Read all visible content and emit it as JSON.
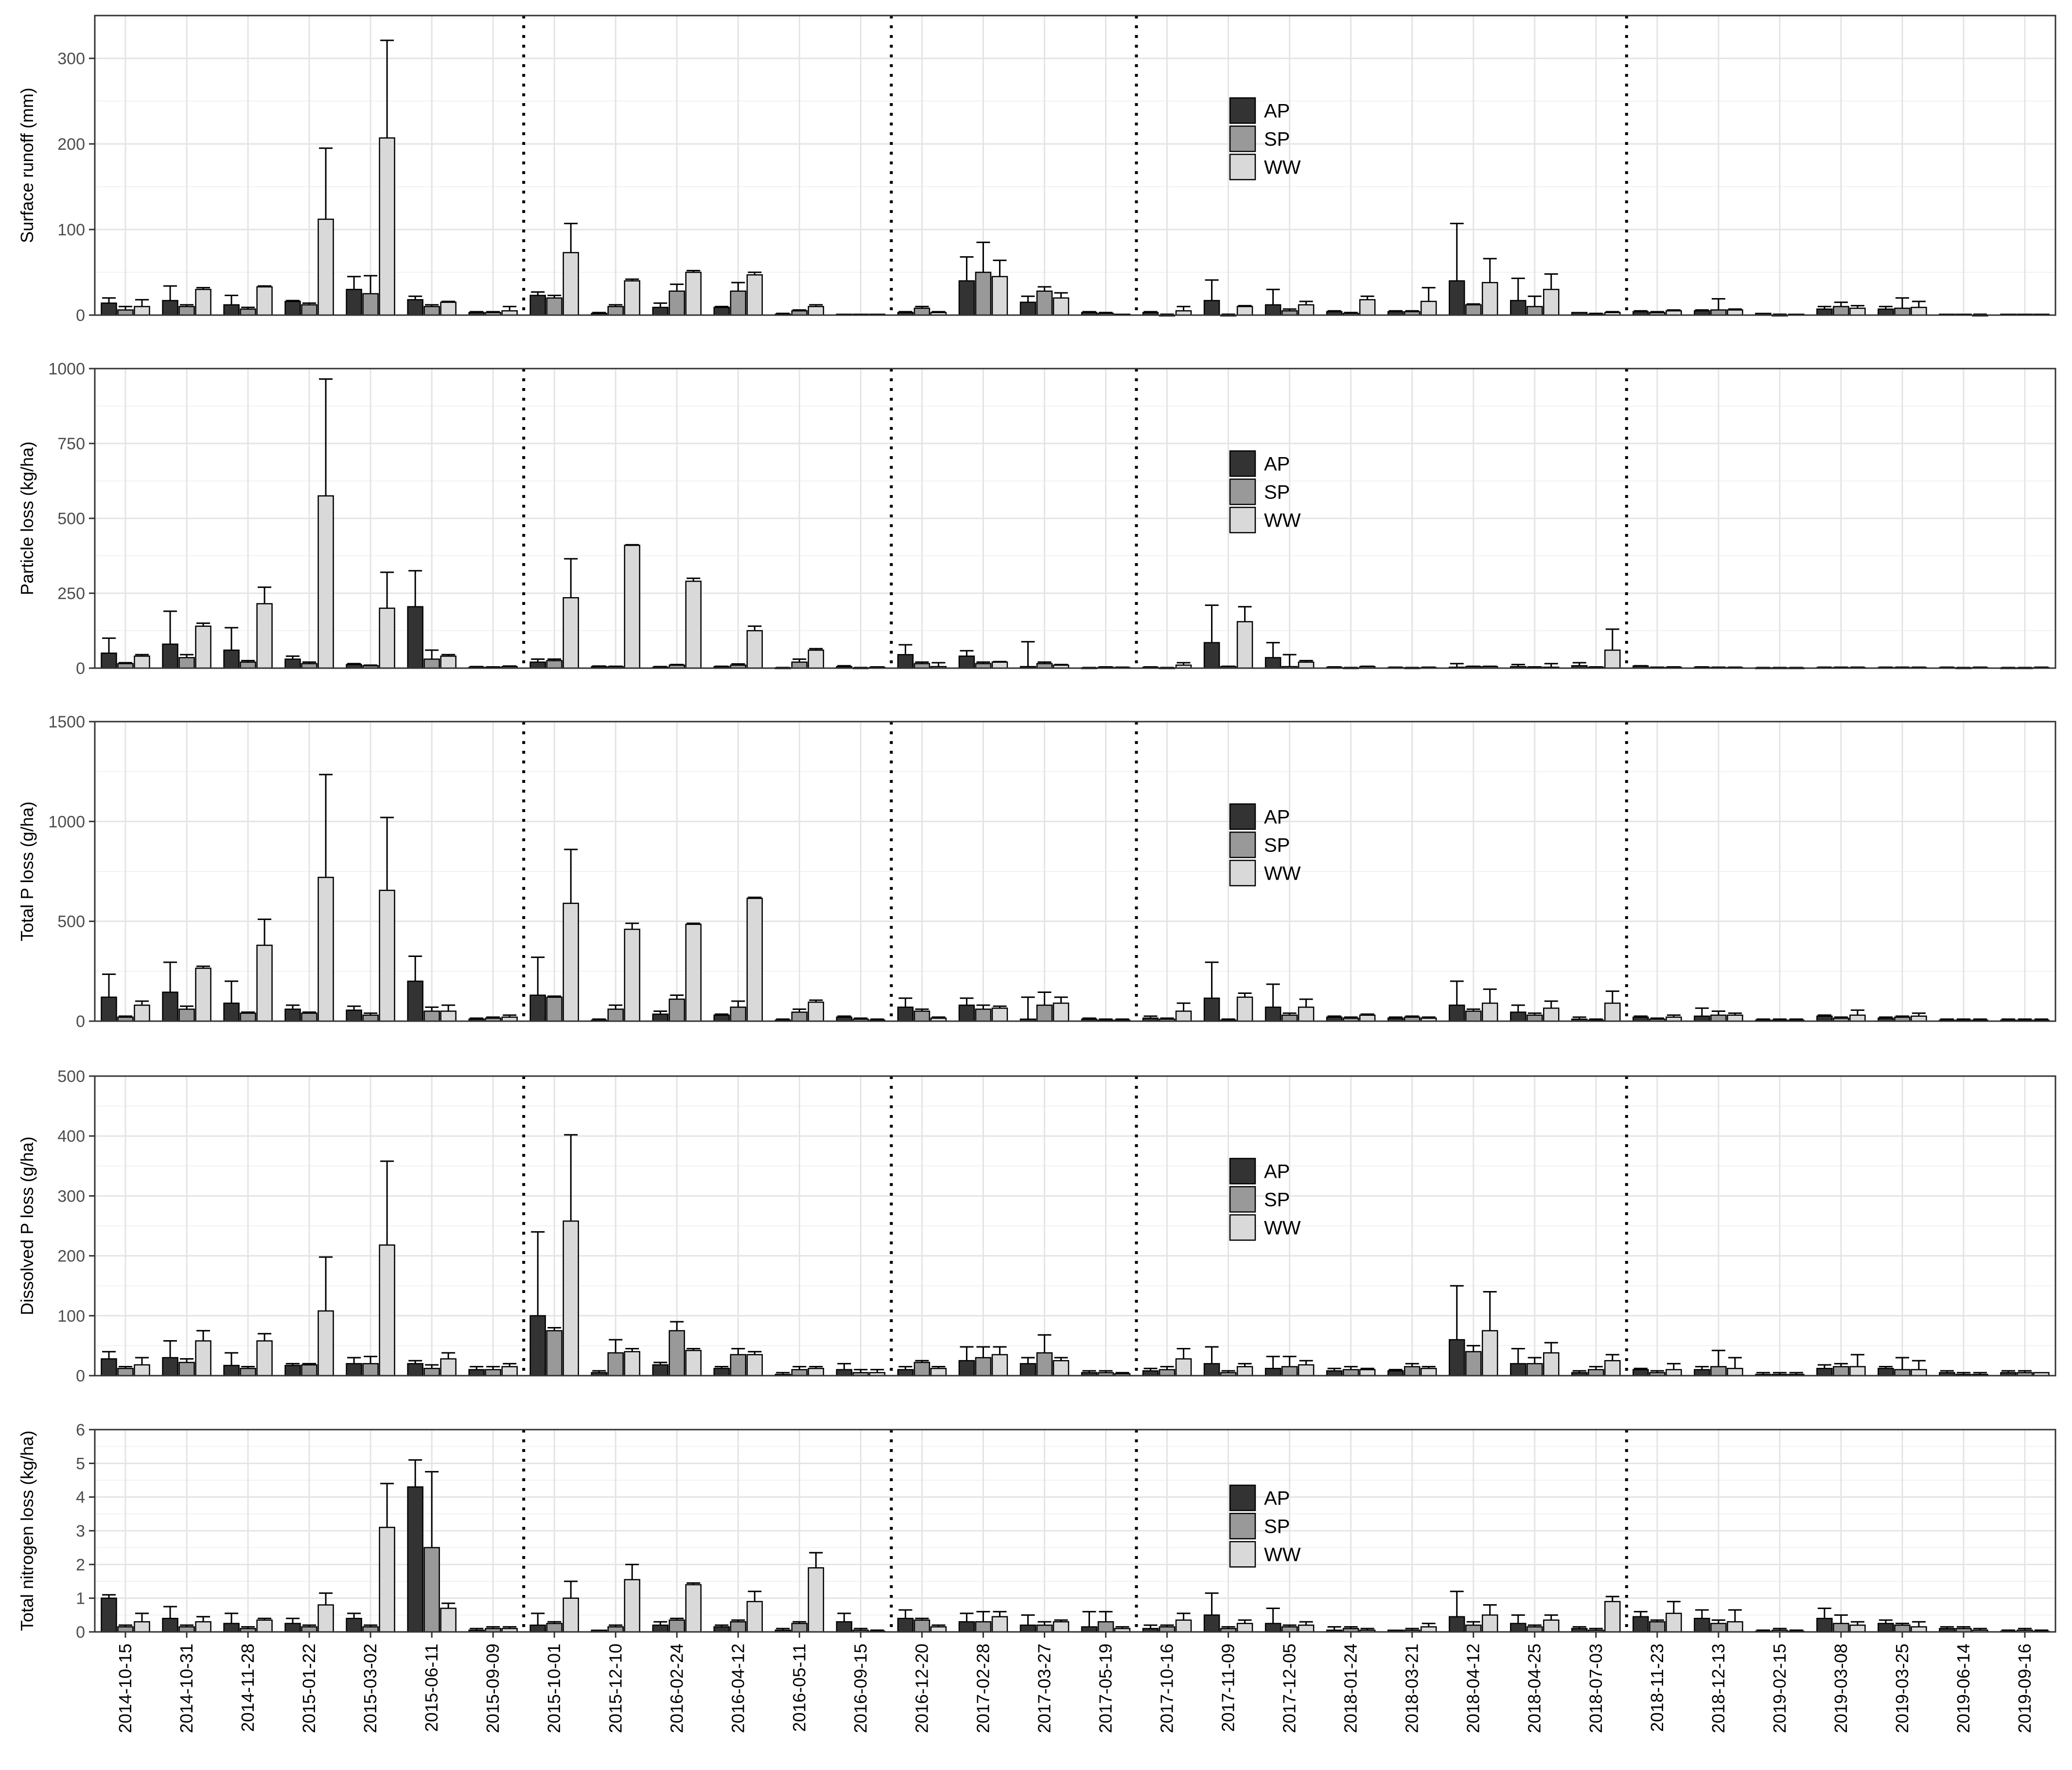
{
  "figure": {
    "type": "bar",
    "dates": [
      "2014-10-15",
      "2014-10-31",
      "2014-11-28",
      "2015-01-22",
      "2015-03-02",
      "2015-06-11",
      "2015-09-09",
      "2015-10-01",
      "2015-12-10",
      "2016-02-24",
      "2016-04-12",
      "2016-05-11",
      "2016-09-15",
      "2016-12-20",
      "2017-02-28",
      "2017-03-27",
      "2017-05-19",
      "2017-10-16",
      "2017-11-09",
      "2017-12-05",
      "2018-01-24",
      "2018-03-21",
      "2018-04-12",
      "2018-04-25",
      "2018-07-03",
      "2018-11-23",
      "2018-12-13",
      "2019-02-15",
      "2019-03-08",
      "2019-03-25",
      "2019-06-14",
      "2019-09-16"
    ],
    "series_names": [
      "AP",
      "SP",
      "WW"
    ],
    "colors": {
      "AP": "#333333",
      "SP": "#999999",
      "WW": "#d9d9d9"
    },
    "period_separators_after": [
      "2015-09-09",
      "2016-09-15",
      "2017-05-19",
      "2018-07-03"
    ],
    "legend_placement": "inside, upper middle of each panel",
    "grid": true
  },
  "chart_data": [
    {
      "type": "bar",
      "ylabel": "Surface runoff (mm)",
      "ylim": [
        0,
        350
      ],
      "yticks": [
        0,
        100,
        200,
        300
      ],
      "series": [
        {
          "name": "AP",
          "values": [
            14,
            17,
            12,
            16,
            30,
            18,
            3,
            23,
            2,
            9,
            9,
            1,
            1,
            3,
            40,
            15,
            3,
            3,
            17,
            12,
            4,
            4,
            40,
            17,
            3,
            4,
            5,
            2,
            7,
            7,
            1,
            1
          ]
        },
        {
          "name": "SP",
          "values": [
            6,
            10,
            7,
            12,
            25,
            10,
            3,
            20,
            10,
            28,
            28,
            5,
            1,
            8,
            50,
            28,
            2,
            0,
            0,
            5,
            2,
            4,
            12,
            10,
            1,
            3,
            6,
            0,
            10,
            8,
            1,
            1
          ]
        },
        {
          "name": "WW",
          "values": [
            10,
            30,
            33,
            112,
            207,
            15,
            5,
            73,
            40,
            50,
            47,
            10,
            1,
            3,
            45,
            20,
            1,
            5,
            10,
            12,
            18,
            16,
            38,
            30,
            3,
            5,
            6,
            1,
            8,
            9,
            0,
            1
          ]
        }
      ],
      "error_tops": {
        "AP": [
          20,
          34,
          23,
          17,
          45,
          22,
          4,
          27,
          3,
          14,
          10,
          2,
          1,
          4,
          68,
          22,
          4,
          4,
          41,
          30,
          5,
          5,
          107,
          43,
          3,
          5,
          6,
          2,
          10,
          10,
          1,
          1
        ],
        "SP": [
          10,
          12,
          9,
          14,
          46,
          12,
          4,
          23,
          12,
          36,
          38,
          6,
          1,
          10,
          85,
          33,
          3,
          1,
          1,
          7,
          3,
          5,
          13,
          22,
          2,
          4,
          19,
          1,
          15,
          20,
          1,
          1
        ],
        "WW": [
          18,
          32,
          34,
          195,
          321,
          16,
          10,
          107,
          42,
          52,
          50,
          12,
          1,
          4,
          64,
          26,
          1,
          10,
          11,
          16,
          22,
          32,
          66,
          48,
          4,
          6,
          7,
          1,
          11,
          16,
          1,
          1
        ]
      }
    },
    {
      "type": "bar",
      "ylabel": "Particle loss (kg/ha)",
      "ylim": [
        0,
        1000
      ],
      "yticks": [
        0,
        250,
        500,
        750,
        1000
      ],
      "series": [
        {
          "name": "AP",
          "values": [
            50,
            80,
            60,
            30,
            12,
            205,
            3,
            20,
            5,
            3,
            5,
            1,
            5,
            45,
            40,
            5,
            1,
            3,
            85,
            35,
            3,
            2,
            3,
            5,
            8,
            7,
            3,
            1,
            2,
            2,
            2,
            1
          ]
        },
        {
          "name": "SP",
          "values": [
            15,
            35,
            20,
            15,
            8,
            30,
            3,
            25,
            5,
            10,
            10,
            20,
            1,
            15,
            15,
            15,
            3,
            1,
            5,
            5,
            1,
            1,
            5,
            3,
            3,
            2,
            2,
            1,
            2,
            2,
            1,
            1
          ]
        },
        {
          "name": "WW",
          "values": [
            40,
            140,
            215,
            575,
            200,
            40,
            5,
            235,
            410,
            290,
            125,
            60,
            3,
            5,
            20,
            10,
            2,
            10,
            155,
            20,
            5,
            2,
            5,
            3,
            60,
            3,
            2,
            1,
            2,
            2,
            2,
            2
          ]
        }
      ],
      "error_tops": {
        "AP": [
          100,
          190,
          135,
          40,
          15,
          325,
          5,
          30,
          7,
          5,
          6,
          2,
          8,
          78,
          58,
          88,
          2,
          4,
          210,
          85,
          4,
          3,
          15,
          12,
          18,
          8,
          4,
          2,
          3,
          3,
          3,
          2
        ],
        "SP": [
          18,
          45,
          25,
          20,
          10,
          60,
          4,
          30,
          6,
          12,
          14,
          30,
          2,
          20,
          20,
          20,
          4,
          2,
          6,
          45,
          2,
          2,
          6,
          4,
          4,
          3,
          3,
          2,
          3,
          3,
          2,
          2
        ],
        "WW": [
          45,
          150,
          270,
          965,
          320,
          45,
          7,
          365,
          412,
          300,
          140,
          65,
          4,
          18,
          22,
          12,
          3,
          18,
          205,
          25,
          6,
          3,
          6,
          15,
          130,
          4,
          3,
          2,
          3,
          3,
          3,
          3
        ]
      }
    },
    {
      "type": "bar",
      "ylabel": "Total P loss (g/ha)",
      "ylim": [
        0,
        1500
      ],
      "yticks": [
        0,
        500,
        1000,
        1500
      ],
      "series": [
        {
          "name": "AP",
          "values": [
            120,
            145,
            90,
            60,
            55,
            200,
            10,
            130,
            5,
            35,
            30,
            5,
            20,
            70,
            80,
            10,
            10,
            15,
            115,
            70,
            20,
            15,
            80,
            45,
            10,
            20,
            25,
            5,
            25,
            15,
            5,
            5
          ]
        },
        {
          "name": "SP",
          "values": [
            20,
            60,
            40,
            40,
            30,
            50,
            15,
            120,
            60,
            110,
            70,
            45,
            10,
            50,
            60,
            80,
            5,
            10,
            5,
            30,
            15,
            20,
            50,
            30,
            5,
            10,
            30,
            5,
            15,
            20,
            5,
            5
          ]
        },
        {
          "name": "WW",
          "values": [
            80,
            265,
            380,
            720,
            655,
            50,
            20,
            590,
            460,
            485,
            615,
            95,
            5,
            15,
            65,
            90,
            5,
            50,
            120,
            70,
            30,
            15,
            90,
            65,
            90,
            20,
            30,
            5,
            30,
            25,
            5,
            5
          ]
        }
      ],
      "error_tops": {
        "AP": [
          235,
          295,
          200,
          80,
          75,
          325,
          15,
          320,
          10,
          50,
          35,
          10,
          25,
          115,
          115,
          120,
          15,
          25,
          295,
          185,
          25,
          20,
          200,
          80,
          20,
          25,
          65,
          10,
          30,
          20,
          10,
          10
        ],
        "SP": [
          25,
          75,
          45,
          45,
          40,
          70,
          20,
          125,
          80,
          130,
          100,
          60,
          15,
          60,
          80,
          145,
          10,
          15,
          10,
          40,
          20,
          25,
          60,
          40,
          10,
          15,
          50,
          10,
          20,
          25,
          10,
          10
        ],
        "WW": [
          100,
          275,
          510,
          1235,
          1020,
          80,
          30,
          860,
          490,
          490,
          620,
          105,
          10,
          20,
          75,
          120,
          10,
          90,
          140,
          110,
          35,
          20,
          160,
          100,
          150,
          30,
          40,
          10,
          55,
          40,
          10,
          10
        ]
      }
    },
    {
      "type": "bar",
      "ylabel": "Dissolved P loss (g/ha)",
      "ylim": [
        0,
        500
      ],
      "yticks": [
        0,
        100,
        200,
        300,
        400,
        500
      ],
      "series": [
        {
          "name": "AP",
          "values": [
            28,
            30,
            17,
            17,
            20,
            20,
            10,
            100,
            5,
            18,
            12,
            2,
            10,
            10,
            25,
            20,
            5,
            8,
            20,
            12,
            8,
            8,
            60,
            20,
            5,
            10,
            10,
            2,
            12,
            12,
            5,
            5
          ]
        },
        {
          "name": "SP",
          "values": [
            12,
            22,
            12,
            18,
            20,
            12,
            10,
            75,
            38,
            75,
            35,
            10,
            5,
            22,
            30,
            38,
            5,
            10,
            5,
            15,
            10,
            15,
            40,
            20,
            10,
            5,
            15,
            2,
            15,
            10,
            2,
            5
          ]
        },
        {
          "name": "WW",
          "values": [
            18,
            58,
            58,
            108,
            218,
            28,
            15,
            258,
            40,
            42,
            35,
            12,
            5,
            12,
            35,
            25,
            3,
            28,
            15,
            18,
            10,
            12,
            75,
            38,
            25,
            10,
            12,
            2,
            15,
            10,
            2,
            5
          ]
        }
      ],
      "error_tops": {
        "AP": [
          40,
          58,
          38,
          20,
          30,
          25,
          15,
          240,
          8,
          22,
          15,
          5,
          20,
          15,
          48,
          30,
          8,
          12,
          48,
          32,
          12,
          10,
          150,
          45,
          8,
          12,
          15,
          5,
          18,
          15,
          8,
          8
        ],
        "SP": [
          15,
          28,
          15,
          20,
          32,
          18,
          15,
          80,
          60,
          90,
          45,
          15,
          10,
          25,
          48,
          68,
          8,
          15,
          8,
          32,
          15,
          20,
          50,
          30,
          15,
          8,
          42,
          5,
          20,
          30,
          5,
          8
        ],
        "WW": [
          30,
          75,
          70,
          198,
          358,
          38,
          20,
          402,
          45,
          45,
          40,
          15,
          10,
          15,
          48,
          30,
          5,
          45,
          20,
          25,
          12,
          15,
          140,
          55,
          35,
          20,
          30,
          5,
          35,
          25,
          5,
          5
        ]
      }
    },
    {
      "type": "bar",
      "ylabel": "Total nitrogen loss (kg/ha)",
      "ylim": [
        0,
        6
      ],
      "yticks": [
        0,
        1,
        2,
        3,
        4,
        5,
        6
      ],
      "series": [
        {
          "name": "AP",
          "values": [
            1.0,
            0.4,
            0.25,
            0.25,
            0.4,
            4.3,
            0.05,
            0.2,
            0.05,
            0.2,
            0.15,
            0.05,
            0.3,
            0.4,
            0.3,
            0.2,
            0.15,
            0.1,
            0.5,
            0.25,
            0.05,
            0.05,
            0.45,
            0.25,
            0.1,
            0.45,
            0.4,
            0.02,
            0.4,
            0.25,
            0.1,
            0.02
          ]
        },
        {
          "name": "SP",
          "values": [
            0.15,
            0.15,
            0.1,
            0.15,
            0.15,
            2.5,
            0.1,
            0.25,
            0.15,
            0.35,
            0.3,
            0.25,
            0.05,
            0.35,
            0.3,
            0.2,
            0.3,
            0.15,
            0.1,
            0.15,
            0.1,
            0.05,
            0.2,
            0.15,
            0.05,
            0.3,
            0.25,
            0.05,
            0.25,
            0.2,
            0.1,
            0.05
          ]
        },
        {
          "name": "WW",
          "values": [
            0.3,
            0.3,
            0.35,
            0.8,
            3.1,
            0.7,
            0.1,
            1.0,
            1.55,
            1.4,
            0.9,
            1.9,
            0.02,
            0.15,
            0.45,
            0.3,
            0.1,
            0.35,
            0.25,
            0.2,
            0.05,
            0.15,
            0.5,
            0.35,
            0.9,
            0.55,
            0.3,
            0.02,
            0.2,
            0.15,
            0.05,
            0.02
          ]
        }
      ],
      "error_tops": {
        "AP": [
          1.1,
          0.75,
          0.55,
          0.4,
          0.55,
          5.1,
          0.1,
          0.55,
          0.05,
          0.3,
          0.2,
          0.1,
          0.55,
          0.65,
          0.55,
          0.5,
          0.6,
          0.2,
          1.15,
          0.7,
          0.15,
          0.05,
          1.2,
          0.5,
          0.15,
          0.6,
          0.65,
          0.05,
          0.7,
          0.35,
          0.15,
          0.05
        ],
        "SP": [
          0.2,
          0.2,
          0.15,
          0.2,
          0.2,
          4.75,
          0.15,
          0.3,
          0.2,
          0.4,
          0.35,
          0.3,
          0.1,
          0.4,
          0.6,
          0.3,
          0.6,
          0.2,
          0.15,
          0.2,
          0.15,
          0.1,
          0.3,
          0.2,
          0.1,
          0.35,
          0.35,
          0.1,
          0.5,
          0.25,
          0.15,
          0.1
        ],
        "WW": [
          0.55,
          0.45,
          0.4,
          1.15,
          4.4,
          0.85,
          0.15,
          1.5,
          2.0,
          1.45,
          1.2,
          2.35,
          0.05,
          0.2,
          0.6,
          0.35,
          0.15,
          0.55,
          0.35,
          0.3,
          0.1,
          0.25,
          0.8,
          0.5,
          1.05,
          0.9,
          0.65,
          0.05,
          0.3,
          0.3,
          0.1,
          0.05
        ]
      }
    }
  ]
}
